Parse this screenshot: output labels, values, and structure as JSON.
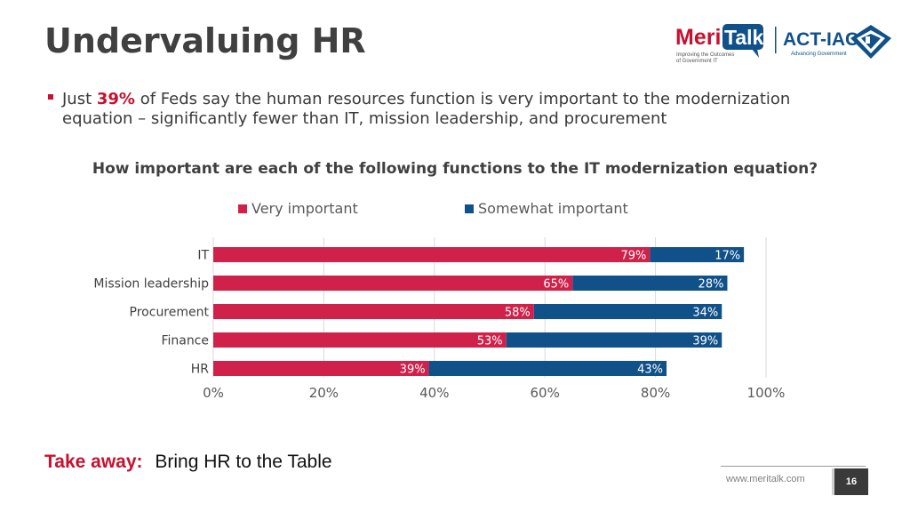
{
  "slide": {
    "title": "Undervaluing HR",
    "bullet": {
      "pre": "Just ",
      "highlight": "39%",
      "post": " of Feds say the human resources function is very important to the modernization equation –  significantly fewer than IT, mission leadership, and procurement"
    },
    "takeaway_label": "Take away:",
    "takeaway_text": "Bring HR to the Table",
    "footer_url": "www.meritalk.com",
    "page_number": "16"
  },
  "logos": {
    "meritalk_word_1": "Meri",
    "meritalk_word_2": "Talk",
    "meritalk_tagline_1": "Improving the Outcomes",
    "meritalk_tagline_2": "of Government IT",
    "actiac_name": "ACT-IAC",
    "actiac_tagline": "Advancing Government"
  },
  "colors": {
    "very_important": "#d0214a",
    "somewhat_important": "#10518a",
    "accent": "#c8102e"
  },
  "chart_data": {
    "type": "bar",
    "orientation": "horizontal",
    "stacked": true,
    "title": "How important are each of the following functions to the IT modernization equation?",
    "categories": [
      "IT",
      "Mission leadership",
      "Procurement",
      "Finance",
      "HR"
    ],
    "series": [
      {
        "name": "Very important",
        "values": [
          79,
          65,
          58,
          53,
          39
        ],
        "labels": [
          "79%",
          "65%",
          "58%",
          "53%",
          "39%"
        ]
      },
      {
        "name": "Somewhat important",
        "values": [
          17,
          28,
          34,
          39,
          43
        ],
        "labels": [
          "17%",
          "28%",
          "34%",
          "39%",
          "43%"
        ]
      }
    ],
    "xlim": [
      0,
      100
    ],
    "x_ticks": [
      0,
      20,
      40,
      60,
      80,
      100
    ],
    "x_tick_labels": [
      "0%",
      "20%",
      "40%",
      "60%",
      "80%",
      "100%"
    ],
    "grid": true,
    "legend": "top"
  }
}
